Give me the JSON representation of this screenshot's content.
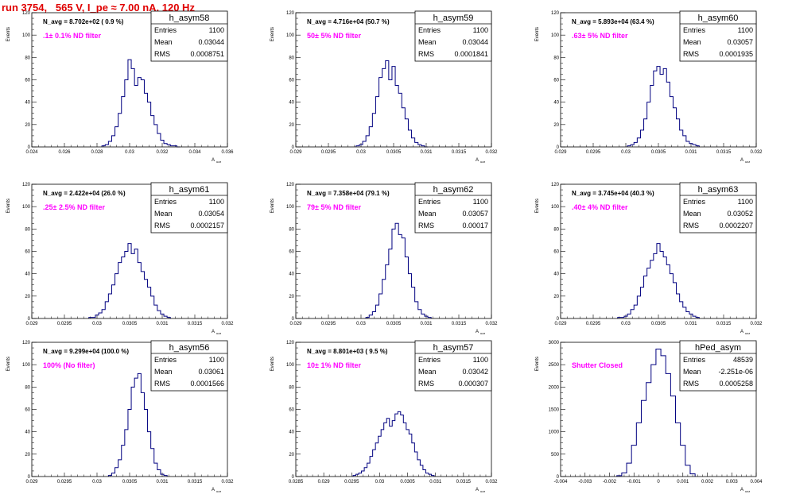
{
  "run_title": "run 3754,   565 V, I_pe ≈ 7.00 nA, 120 Hz",
  "chart_data": [
    {
      "type": "bar",
      "hist_name": "h_asym58",
      "stats": {
        "entries": "1100",
        "mean": "0.03044",
        "rms": "0.0008751"
      },
      "n_avg": "N_avg = 8.702e+02 ( 0.9 %)",
      "filter": ".1± 0.1% ND filter",
      "xlim": [
        0.024,
        0.036
      ],
      "xticks": [
        "0.024",
        "0.026",
        "0.028",
        "0.03",
        "0.032",
        "0.034",
        "0.036"
      ],
      "ylim": [
        0,
        120
      ],
      "yticks": [
        "0",
        "20",
        "40",
        "60",
        "80",
        "100",
        "120"
      ],
      "xlabel": "A uzz",
      "ylabel": "Events",
      "x": [
        0.0284,
        0.0286,
        0.0288,
        0.029,
        0.0292,
        0.0294,
        0.0296,
        0.0298,
        0.03,
        0.0302,
        0.0304,
        0.0306,
        0.0308,
        0.031,
        0.0312,
        0.0314,
        0.0316,
        0.0318,
        0.032,
        0.0322,
        0.0324,
        0.0326,
        0.0328,
        0.033
      ],
      "values": [
        1,
        2,
        5,
        10,
        18,
        30,
        45,
        60,
        78,
        70,
        55,
        62,
        60,
        48,
        40,
        28,
        20,
        12,
        6,
        3,
        2,
        1,
        1,
        0
      ]
    },
    {
      "type": "bar",
      "hist_name": "h_asym59",
      "stats": {
        "entries": "1100",
        "mean": "0.03044",
        "rms": "0.0001841"
      },
      "n_avg": "N_avg = 4.716e+04 (50.7 %)",
      "filter": "50± 5% ND filter",
      "xlim": [
        0.029,
        0.032
      ],
      "xticks": [
        "0.029",
        "0.0295",
        "0.03",
        "0.0305",
        "0.031",
        "0.0315",
        "0.032"
      ],
      "ylim": [
        0,
        120
      ],
      "yticks": [
        "0",
        "20",
        "40",
        "60",
        "80",
        "100",
        "120"
      ],
      "xlabel": "A uzz",
      "ylabel": "Events",
      "x": [
        0.02995,
        0.03,
        0.03005,
        0.0301,
        0.03015,
        0.0302,
        0.03025,
        0.0303,
        0.03035,
        0.0304,
        0.03045,
        0.0305,
        0.03055,
        0.0306,
        0.03065,
        0.0307,
        0.03075,
        0.0308,
        0.03085,
        0.0309,
        0.03095,
        0.031
      ],
      "values": [
        1,
        2,
        5,
        10,
        18,
        30,
        45,
        62,
        70,
        77,
        60,
        72,
        55,
        48,
        35,
        25,
        15,
        8,
        4,
        2,
        1,
        0
      ]
    },
    {
      "type": "bar",
      "hist_name": "h_asym60",
      "stats": {
        "entries": "1100",
        "mean": "0.03057",
        "rms": "0.0001935"
      },
      "n_avg": "N_avg = 5.893e+04 (63.4 %)",
      "filter": ".63± 5% ND filter",
      "xlim": [
        0.029,
        0.032
      ],
      "xticks": [
        "0.029",
        "0.0295",
        "0.03",
        "0.0305",
        "0.031",
        "0.0315",
        "0.032"
      ],
      "ylim": [
        0,
        120
      ],
      "yticks": [
        "0",
        "20",
        "40",
        "60",
        "80",
        "100",
        "120"
      ],
      "xlabel": "A uzz",
      "ylabel": "Events",
      "x": [
        0.03005,
        0.0301,
        0.03015,
        0.0302,
        0.03025,
        0.0303,
        0.03035,
        0.0304,
        0.03045,
        0.0305,
        0.03055,
        0.0306,
        0.03065,
        0.0307,
        0.03075,
        0.0308,
        0.03085,
        0.0309,
        0.03095,
        0.031,
        0.03105,
        0.0311
      ],
      "values": [
        1,
        2,
        4,
        8,
        15,
        25,
        40,
        55,
        68,
        72,
        65,
        70,
        58,
        45,
        35,
        25,
        15,
        10,
        5,
        3,
        2,
        1
      ]
    },
    {
      "type": "bar",
      "hist_name": "h_asym61",
      "stats": {
        "entries": "1100",
        "mean": "0.03054",
        "rms": "0.0002157"
      },
      "n_avg": "N_avg = 2.422e+04 (26.0 %)",
      "filter": ".25± 2.5% ND filter",
      "xlim": [
        0.029,
        0.032
      ],
      "xticks": [
        "0.029",
        "0.0295",
        "0.03",
        "0.0305",
        "0.031",
        "0.0315",
        "0.032"
      ],
      "ylim": [
        0,
        120
      ],
      "yticks": [
        "0",
        "20",
        "40",
        "60",
        "80",
        "100",
        "120"
      ],
      "xlabel": "A uzz",
      "ylabel": "Events",
      "x": [
        0.0299,
        0.02995,
        0.03,
        0.03005,
        0.0301,
        0.03015,
        0.0302,
        0.03025,
        0.0303,
        0.03035,
        0.0304,
        0.03045,
        0.0305,
        0.03055,
        0.0306,
        0.03065,
        0.0307,
        0.03075,
        0.0308,
        0.03085,
        0.0309,
        0.03095,
        0.031,
        0.03105,
        0.0311
      ],
      "values": [
        1,
        1,
        3,
        5,
        8,
        15,
        22,
        30,
        40,
        50,
        55,
        60,
        67,
        58,
        62,
        50,
        42,
        35,
        28,
        20,
        12,
        7,
        4,
        2,
        1
      ]
    },
    {
      "type": "bar",
      "hist_name": "h_asym62",
      "stats": {
        "entries": "1100",
        "mean": "0.03057",
        "rms": "0.00017"
      },
      "n_avg": "N_avg = 7.358e+04 (79.1 %)",
      "filter": "79± 5% ND filter",
      "xlim": [
        0.029,
        0.032
      ],
      "xticks": [
        "0.029",
        "0.0295",
        "0.03",
        "0.0305",
        "0.031",
        "0.0315",
        "0.032"
      ],
      "ylim": [
        0,
        120
      ],
      "yticks": [
        "0",
        "20",
        "40",
        "60",
        "80",
        "100",
        "120"
      ],
      "xlabel": "A uzz",
      "ylabel": "Events",
      "x": [
        0.0301,
        0.03015,
        0.0302,
        0.03025,
        0.0303,
        0.03035,
        0.0304,
        0.03045,
        0.0305,
        0.03055,
        0.0306,
        0.03065,
        0.0307,
        0.03075,
        0.0308,
        0.03085,
        0.0309,
        0.03095,
        0.031,
        0.03105
      ],
      "values": [
        1,
        3,
        6,
        12,
        22,
        35,
        48,
        62,
        80,
        85,
        75,
        72,
        55,
        40,
        28,
        15,
        8,
        4,
        2,
        1
      ]
    },
    {
      "type": "bar",
      "hist_name": "h_asym63",
      "stats": {
        "entries": "1100",
        "mean": "0.03052",
        "rms": "0.0002207"
      },
      "n_avg": "N_avg = 3.745e+04 (40.3 %)",
      "filter": ".40± 4% ND filter",
      "xlim": [
        0.029,
        0.032
      ],
      "xticks": [
        "0.029",
        "0.0295",
        "0.03",
        "0.0305",
        "0.031",
        "0.0315",
        "0.032"
      ],
      "ylim": [
        0,
        120
      ],
      "yticks": [
        "0",
        "20",
        "40",
        "60",
        "80",
        "100",
        "120"
      ],
      "xlabel": "A uzz",
      "ylabel": "Events",
      "x": [
        0.0299,
        0.02995,
        0.03,
        0.03005,
        0.0301,
        0.03015,
        0.0302,
        0.03025,
        0.0303,
        0.03035,
        0.0304,
        0.03045,
        0.0305,
        0.03055,
        0.0306,
        0.03065,
        0.0307,
        0.03075,
        0.0308,
        0.03085,
        0.0309,
        0.03095,
        0.031,
        0.03105,
        0.0311
      ],
      "values": [
        1,
        1,
        2,
        4,
        8,
        12,
        20,
        28,
        38,
        45,
        52,
        58,
        67,
        60,
        55,
        48,
        40,
        32,
        22,
        15,
        10,
        6,
        4,
        2,
        1
      ]
    },
    {
      "type": "bar",
      "hist_name": "h_asym56",
      "stats": {
        "entries": "1100",
        "mean": "0.03061",
        "rms": "0.0001566"
      },
      "n_avg": "N_avg = 9.299e+04 (100.0 %)",
      "filter": "100% (No filter)",
      "xlim": [
        0.029,
        0.032
      ],
      "xticks": [
        "0.029",
        "0.0295",
        "0.03",
        "0.0305",
        "0.031",
        "0.0315",
        "0.032"
      ],
      "ylim": [
        0,
        120
      ],
      "yticks": [
        "0",
        "20",
        "40",
        "60",
        "80",
        "100",
        "120"
      ],
      "xlabel": "A uzz",
      "ylabel": "Events",
      "x": [
        0.0302,
        0.03025,
        0.0303,
        0.03035,
        0.0304,
        0.03045,
        0.0305,
        0.03055,
        0.0306,
        0.03065,
        0.0307,
        0.03075,
        0.0308,
        0.03085,
        0.0309,
        0.03095,
        0.031,
        0.03105
      ],
      "values": [
        1,
        3,
        8,
        15,
        28,
        42,
        60,
        80,
        88,
        92,
        75,
        60,
        40,
        25,
        12,
        6,
        2,
        1
      ]
    },
    {
      "type": "bar",
      "hist_name": "h_asym57",
      "stats": {
        "entries": "1100",
        "mean": "0.03042",
        "rms": "0.000307"
      },
      "n_avg": "N_avg = 8.801e+03 ( 9.5 %)",
      "filter": "10± 1% ND filter",
      "xlim": [
        0.0285,
        0.032
      ],
      "xticks": [
        "0.0285",
        "0.029",
        "0.0295",
        "0.03",
        "0.0305",
        "0.031",
        "0.0315",
        "0.032"
      ],
      "ylim": [
        0,
        120
      ],
      "yticks": [
        "0",
        "20",
        "40",
        "60",
        "80",
        "100",
        "120"
      ],
      "xlabel": "A uzz",
      "ylabel": "Events",
      "x": [
        0.02955,
        0.0296,
        0.02965,
        0.0297,
        0.02975,
        0.0298,
        0.02985,
        0.0299,
        0.02995,
        0.03,
        0.03005,
        0.0301,
        0.03015,
        0.0302,
        0.03025,
        0.0303,
        0.03035,
        0.0304,
        0.03045,
        0.0305,
        0.03055,
        0.0306,
        0.03065,
        0.0307,
        0.03075,
        0.0308,
        0.03085,
        0.0309,
        0.03095
      ],
      "values": [
        1,
        2,
        3,
        5,
        8,
        12,
        18,
        24,
        30,
        36,
        42,
        48,
        52,
        45,
        50,
        56,
        58,
        55,
        48,
        42,
        38,
        30,
        22,
        15,
        10,
        6,
        3,
        2,
        1
      ]
    },
    {
      "type": "bar",
      "hist_name": "hPed_asym",
      "stats": {
        "entries": "48539",
        "mean": "-2.251e-06",
        "rms": "0.0005258"
      },
      "n_avg": "",
      "filter": "Shutter Closed",
      "xlim": [
        -0.004,
        0.004
      ],
      "xticks": [
        "-0.004",
        "-0.003",
        "-0.002",
        "-0.001",
        "0",
        "0.001",
        "0.002",
        "0.003",
        "0.004"
      ],
      "ylim": [
        0,
        3000
      ],
      "yticks": [
        "0",
        "500",
        "1000",
        "1500",
        "2000",
        "2500",
        "3000"
      ],
      "xlabel": "A uzz",
      "ylabel": "Events",
      "x": [
        -0.0016,
        -0.0014,
        -0.0012,
        -0.001,
        -0.0008,
        -0.0006,
        -0.0004,
        -0.0002,
        0.0,
        0.0002,
        0.0004,
        0.0006,
        0.0008,
        0.001,
        0.0012,
        0.0014
      ],
      "values": [
        20,
        80,
        300,
        700,
        1200,
        1700,
        2100,
        2500,
        2850,
        2700,
        2300,
        1800,
        1200,
        700,
        250,
        60
      ]
    }
  ]
}
